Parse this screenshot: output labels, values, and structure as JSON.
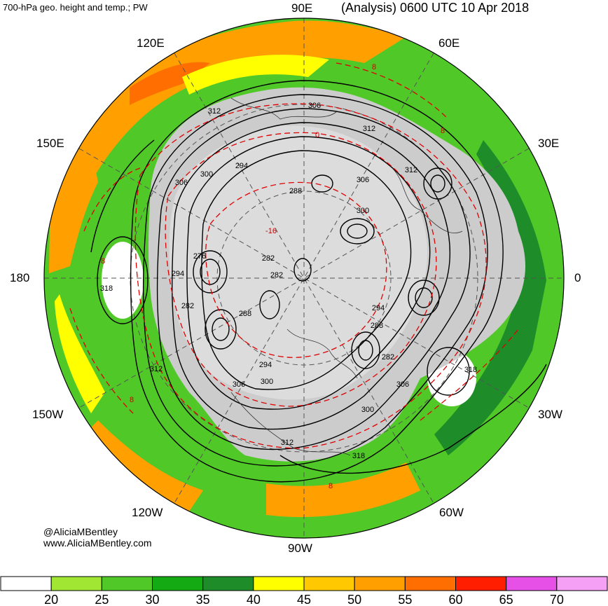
{
  "header": {
    "left_title": "700-hPa geo. height and temp.; PW",
    "right_title": "(Analysis) 0600 UTC 10 Apr 2018"
  },
  "longitude_labels": {
    "lon_90e": "90E",
    "lon_120e": "120E",
    "lon_60e": "60E",
    "lon_150e": "150E",
    "lon_30e": "30E",
    "lon_180": "180",
    "lon_0": "0",
    "lon_150w": "150W",
    "lon_30w": "30W",
    "lon_120w": "120W",
    "lon_60w": "60W",
    "lon_90w": "90W"
  },
  "contour_labels": [
    {
      "id": "c1",
      "text": "306"
    },
    {
      "id": "c2",
      "text": "312"
    },
    {
      "id": "c3",
      "text": "312"
    },
    {
      "id": "c4",
      "text": "300"
    },
    {
      "id": "c5",
      "text": "294"
    },
    {
      "id": "c6",
      "text": "306"
    },
    {
      "id": "c7",
      "text": "288"
    },
    {
      "id": "c8",
      "text": "306"
    },
    {
      "id": "c9",
      "text": "312"
    },
    {
      "id": "c10",
      "text": "300"
    },
    {
      "id": "c11",
      "text": "276"
    },
    {
      "id": "c12",
      "text": "294"
    },
    {
      "id": "c13",
      "text": "318"
    },
    {
      "id": "c14",
      "text": "282"
    },
    {
      "id": "c15",
      "text": "282"
    },
    {
      "id": "c16",
      "text": "282"
    },
    {
      "id": "c17",
      "text": "288"
    },
    {
      "id": "c18",
      "text": "294"
    },
    {
      "id": "c19",
      "text": "288"
    },
    {
      "id": "c20",
      "text": "282"
    },
    {
      "id": "c21",
      "text": "294"
    },
    {
      "id": "c22",
      "text": "312"
    },
    {
      "id": "c23",
      "text": "300"
    },
    {
      "id": "c24",
      "text": "306"
    },
    {
      "id": "c25",
      "text": "306"
    },
    {
      "id": "c26",
      "text": "318"
    },
    {
      "id": "c27",
      "text": "300"
    },
    {
      "id": "c28",
      "text": "312"
    },
    {
      "id": "c29",
      "text": "318"
    }
  ],
  "temp_labels": [
    {
      "id": "t1",
      "text": "-16"
    },
    {
      "id": "t2",
      "text": "0"
    },
    {
      "id": "t3",
      "text": "8"
    },
    {
      "id": "t4",
      "text": "8"
    },
    {
      "id": "t5",
      "text": "8"
    },
    {
      "id": "t6",
      "text": "8"
    },
    {
      "id": "t7",
      "text": "8"
    }
  ],
  "credit": {
    "handle": "@AliciaMBentley",
    "site": "www.AliciaMBentley.com"
  },
  "colorbar": {
    "colors": [
      "#ffffff",
      "#a0e632",
      "#50c828",
      "#14aa14",
      "#1e8c28",
      "#ffff00",
      "#ffc800",
      "#ffa000",
      "#ff6e00",
      "#ff1e00",
      "#e650e6",
      "#f5a0f5"
    ],
    "labels": [
      "20",
      "25",
      "30",
      "35",
      "40",
      "45",
      "50",
      "55",
      "60",
      "65",
      "70"
    ]
  },
  "map_colors": {
    "land": "#cccccc",
    "height_contour": "#000000",
    "temp_contour": "#e00000",
    "graticule": "#555555"
  }
}
